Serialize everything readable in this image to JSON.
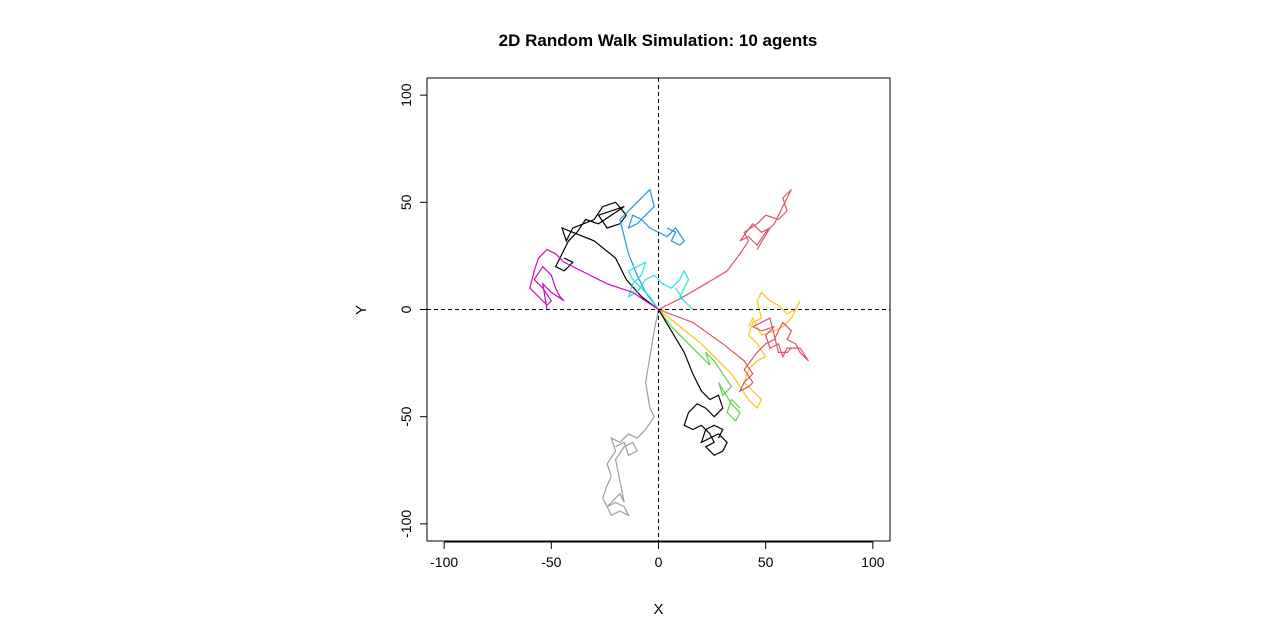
{
  "chart_data": {
    "type": "line",
    "title": "2D Random Walk Simulation: 10 agents",
    "xlabel": "X",
    "ylabel": "Y",
    "xlim": [
      -108,
      108
    ],
    "ylim": [
      -108,
      108
    ],
    "x_ticks": [
      -100,
      -50,
      0,
      50,
      100
    ],
    "y_ticks": [
      -100,
      -50,
      0,
      50,
      100
    ],
    "x_tick_labels": [
      "-100",
      "-50",
      "0",
      "50",
      "100"
    ],
    "y_tick_labels": [
      "-100",
      "-50",
      "0",
      "50",
      "100"
    ],
    "reference_lines": [
      {
        "orientation": "vertical",
        "value": 0,
        "style": "dashed"
      },
      {
        "orientation": "horizontal",
        "value": 0,
        "style": "dashed"
      }
    ],
    "grid": false,
    "legend": "none",
    "series": [
      {
        "color": "#000000",
        "path": [
          [
            0,
            0
          ],
          [
            -8,
            6
          ],
          [
            -15,
            14
          ],
          [
            -20,
            24
          ],
          [
            -30,
            32
          ],
          [
            -40,
            36
          ],
          [
            -45,
            38
          ],
          [
            -43,
            32
          ],
          [
            -40,
            38
          ],
          [
            -35,
            40
          ],
          [
            -30,
            42
          ],
          [
            -26,
            48
          ],
          [
            -20,
            50
          ],
          [
            -15,
            44
          ],
          [
            -18,
            40
          ],
          [
            -24,
            38
          ],
          [
            -28,
            44
          ],
          [
            -22,
            46
          ],
          [
            -16,
            48
          ],
          [
            -28,
            40
          ],
          [
            -34,
            42
          ],
          [
            -38,
            36
          ],
          [
            -42,
            32
          ],
          [
            -46,
            24
          ],
          [
            -48,
            20
          ],
          [
            -44,
            18
          ],
          [
            -40,
            22
          ],
          [
            -44,
            24
          ]
        ]
      },
      {
        "color": "#DF536B",
        "path": [
          [
            0,
            0
          ],
          [
            10,
            5
          ],
          [
            22,
            12
          ],
          [
            32,
            18
          ],
          [
            38,
            26
          ],
          [
            42,
            32
          ],
          [
            40,
            36
          ],
          [
            46,
            40
          ],
          [
            50,
            44
          ],
          [
            56,
            42
          ],
          [
            60,
            46
          ],
          [
            58,
            52
          ],
          [
            62,
            56
          ],
          [
            58,
            48
          ],
          [
            54,
            40
          ],
          [
            50,
            36
          ],
          [
            46,
            30
          ],
          [
            42,
            34
          ],
          [
            38,
            32
          ],
          [
            44,
            40
          ],
          [
            48,
            36
          ],
          [
            52,
            38
          ],
          [
            46,
            28
          ]
        ]
      },
      {
        "color": "#61D04F",
        "path": [
          [
            0,
            0
          ],
          [
            6,
            -8
          ],
          [
            14,
            -16
          ],
          [
            20,
            -22
          ],
          [
            24,
            -26
          ],
          [
            22,
            -20
          ],
          [
            26,
            -24
          ],
          [
            30,
            -30
          ],
          [
            34,
            -36
          ],
          [
            30,
            -40
          ],
          [
            28,
            -34
          ],
          [
            34,
            -44
          ],
          [
            38,
            -48
          ],
          [
            36,
            -52
          ],
          [
            32,
            -48
          ],
          [
            34,
            -42
          ],
          [
            38,
            -46
          ]
        ]
      },
      {
        "color": "#2297E6",
        "path": [
          [
            0,
            0
          ],
          [
            -6,
            8
          ],
          [
            -10,
            16
          ],
          [
            -14,
            26
          ],
          [
            -16,
            34
          ],
          [
            -18,
            42
          ],
          [
            -14,
            46
          ],
          [
            -10,
            50
          ],
          [
            -6,
            54
          ],
          [
            -4,
            56
          ],
          [
            -2,
            48
          ],
          [
            -6,
            44
          ],
          [
            -10,
            40
          ],
          [
            -14,
            38
          ],
          [
            -12,
            44
          ],
          [
            -8,
            42
          ],
          [
            -4,
            38
          ],
          [
            0,
            36
          ],
          [
            4,
            34
          ],
          [
            8,
            38
          ],
          [
            12,
            32
          ],
          [
            10,
            30
          ],
          [
            6,
            32
          ],
          [
            8,
            36
          ],
          [
            4,
            38
          ]
        ]
      },
      {
        "color": "#28E2E5",
        "path": [
          [
            0,
            0
          ],
          [
            -4,
            6
          ],
          [
            -8,
            10
          ],
          [
            -12,
            14
          ],
          [
            -14,
            18
          ],
          [
            -10,
            20
          ],
          [
            -6,
            22
          ],
          [
            -8,
            16
          ],
          [
            -12,
            12
          ],
          [
            -14,
            6
          ],
          [
            -10,
            8
          ],
          [
            -6,
            14
          ],
          [
            -2,
            16
          ],
          [
            2,
            12
          ],
          [
            6,
            10
          ],
          [
            10,
            14
          ],
          [
            12,
            18
          ],
          [
            14,
            14
          ],
          [
            10,
            6
          ],
          [
            14,
            2
          ],
          [
            16,
            0
          ],
          [
            12,
            4
          ],
          [
            8,
            10
          ]
        ]
      },
      {
        "color": "#CD0BBC",
        "path": [
          [
            0,
            0
          ],
          [
            -12,
            8
          ],
          [
            -24,
            12
          ],
          [
            -36,
            18
          ],
          [
            -44,
            22
          ],
          [
            -48,
            26
          ],
          [
            -52,
            28
          ],
          [
            -56,
            24
          ],
          [
            -58,
            18
          ],
          [
            -60,
            10
          ],
          [
            -56,
            6
          ],
          [
            -52,
            2
          ],
          [
            -50,
            4
          ],
          [
            -54,
            10
          ],
          [
            -58,
            14
          ],
          [
            -54,
            20
          ],
          [
            -50,
            16
          ],
          [
            -48,
            10
          ],
          [
            -46,
            6
          ],
          [
            -44,
            4
          ],
          [
            -50,
            8
          ],
          [
            -54,
            12
          ],
          [
            -52,
            0
          ]
        ]
      },
      {
        "color": "#F5C710",
        "path": [
          [
            0,
            0
          ],
          [
            10,
            -8
          ],
          [
            20,
            -16
          ],
          [
            28,
            -24
          ],
          [
            34,
            -30
          ],
          [
            38,
            -36
          ],
          [
            42,
            -42
          ],
          [
            46,
            -46
          ],
          [
            48,
            -42
          ],
          [
            44,
            -38
          ],
          [
            40,
            -34
          ],
          [
            42,
            -28
          ],
          [
            46,
            -24
          ],
          [
            50,
            -22
          ],
          [
            46,
            -16
          ],
          [
            42,
            -12
          ],
          [
            44,
            -6
          ],
          [
            48,
            -4
          ],
          [
            46,
            4
          ],
          [
            48,
            8
          ],
          [
            52,
            4
          ],
          [
            56,
            2
          ],
          [
            60,
            -2
          ],
          [
            64,
            0
          ],
          [
            66,
            4
          ],
          [
            62,
            -4
          ],
          [
            58,
            -8
          ],
          [
            54,
            -10
          ],
          [
            48,
            -12
          ],
          [
            44,
            -4
          ],
          [
            42,
            -8
          ]
        ]
      },
      {
        "color": "#9E9E9E",
        "path": [
          [
            0,
            0
          ],
          [
            -2,
            -10
          ],
          [
            -4,
            -22
          ],
          [
            -6,
            -34
          ],
          [
            -4,
            -46
          ],
          [
            -2,
            -50
          ],
          [
            -6,
            -56
          ],
          [
            -10,
            -60
          ],
          [
            -14,
            -58
          ],
          [
            -18,
            -62
          ],
          [
            -22,
            -60
          ],
          [
            -20,
            -66
          ],
          [
            -24,
            -72
          ],
          [
            -22,
            -78
          ],
          [
            -24,
            -82
          ],
          [
            -26,
            -88
          ],
          [
            -24,
            -92
          ],
          [
            -20,
            -90
          ],
          [
            -16,
            -92
          ],
          [
            -14,
            -96
          ],
          [
            -18,
            -94
          ],
          [
            -22,
            -96
          ],
          [
            -24,
            -92
          ],
          [
            -20,
            -88
          ],
          [
            -18,
            -86
          ],
          [
            -16,
            -90
          ],
          [
            -20,
            -70
          ],
          [
            -16,
            -64
          ],
          [
            -12,
            -62
          ],
          [
            -10,
            -66
          ],
          [
            -14,
            -68
          ],
          [
            -16,
            -62
          ],
          [
            -20,
            -64
          ]
        ]
      },
      {
        "color": "#000000",
        "path": [
          [
            0,
            0
          ],
          [
            6,
            -10
          ],
          [
            12,
            -20
          ],
          [
            16,
            -30
          ],
          [
            20,
            -38
          ],
          [
            24,
            -42
          ],
          [
            28,
            -40
          ],
          [
            30,
            -46
          ],
          [
            26,
            -50
          ],
          [
            22,
            -46
          ],
          [
            18,
            -44
          ],
          [
            14,
            -48
          ],
          [
            12,
            -54
          ],
          [
            16,
            -56
          ],
          [
            20,
            -54
          ],
          [
            24,
            -58
          ],
          [
            26,
            -62
          ],
          [
            22,
            -64
          ],
          [
            26,
            -68
          ],
          [
            30,
            -66
          ],
          [
            32,
            -62
          ],
          [
            28,
            -58
          ],
          [
            24,
            -60
          ],
          [
            20,
            -62
          ],
          [
            22,
            -56
          ],
          [
            26,
            -54
          ],
          [
            30,
            -56
          ],
          [
            28,
            -60
          ]
        ]
      },
      {
        "color": "#DF536B",
        "path": [
          [
            0,
            0
          ],
          [
            16,
            -6
          ],
          [
            30,
            -16
          ],
          [
            40,
            -24
          ],
          [
            44,
            -30
          ],
          [
            40,
            -34
          ],
          [
            38,
            -38
          ],
          [
            42,
            -36
          ],
          [
            44,
            -34
          ],
          [
            40,
            -28
          ],
          [
            46,
            -20
          ],
          [
            50,
            -16
          ],
          [
            54,
            -14
          ],
          [
            56,
            -10
          ],
          [
            58,
            -6
          ],
          [
            62,
            -10
          ],
          [
            60,
            -14
          ],
          [
            64,
            -16
          ],
          [
            66,
            -20
          ],
          [
            68,
            -22
          ],
          [
            70,
            -24
          ],
          [
            66,
            -18
          ],
          [
            60,
            -18
          ],
          [
            58,
            -22
          ],
          [
            56,
            -16
          ],
          [
            52,
            -18
          ],
          [
            50,
            -12
          ],
          [
            54,
            -8
          ],
          [
            48,
            -10
          ],
          [
            44,
            -8
          ],
          [
            48,
            -6
          ],
          [
            52,
            -4
          ],
          [
            56,
            -20
          ],
          [
            60,
            -20
          ],
          [
            62,
            -18
          ]
        ]
      }
    ]
  }
}
